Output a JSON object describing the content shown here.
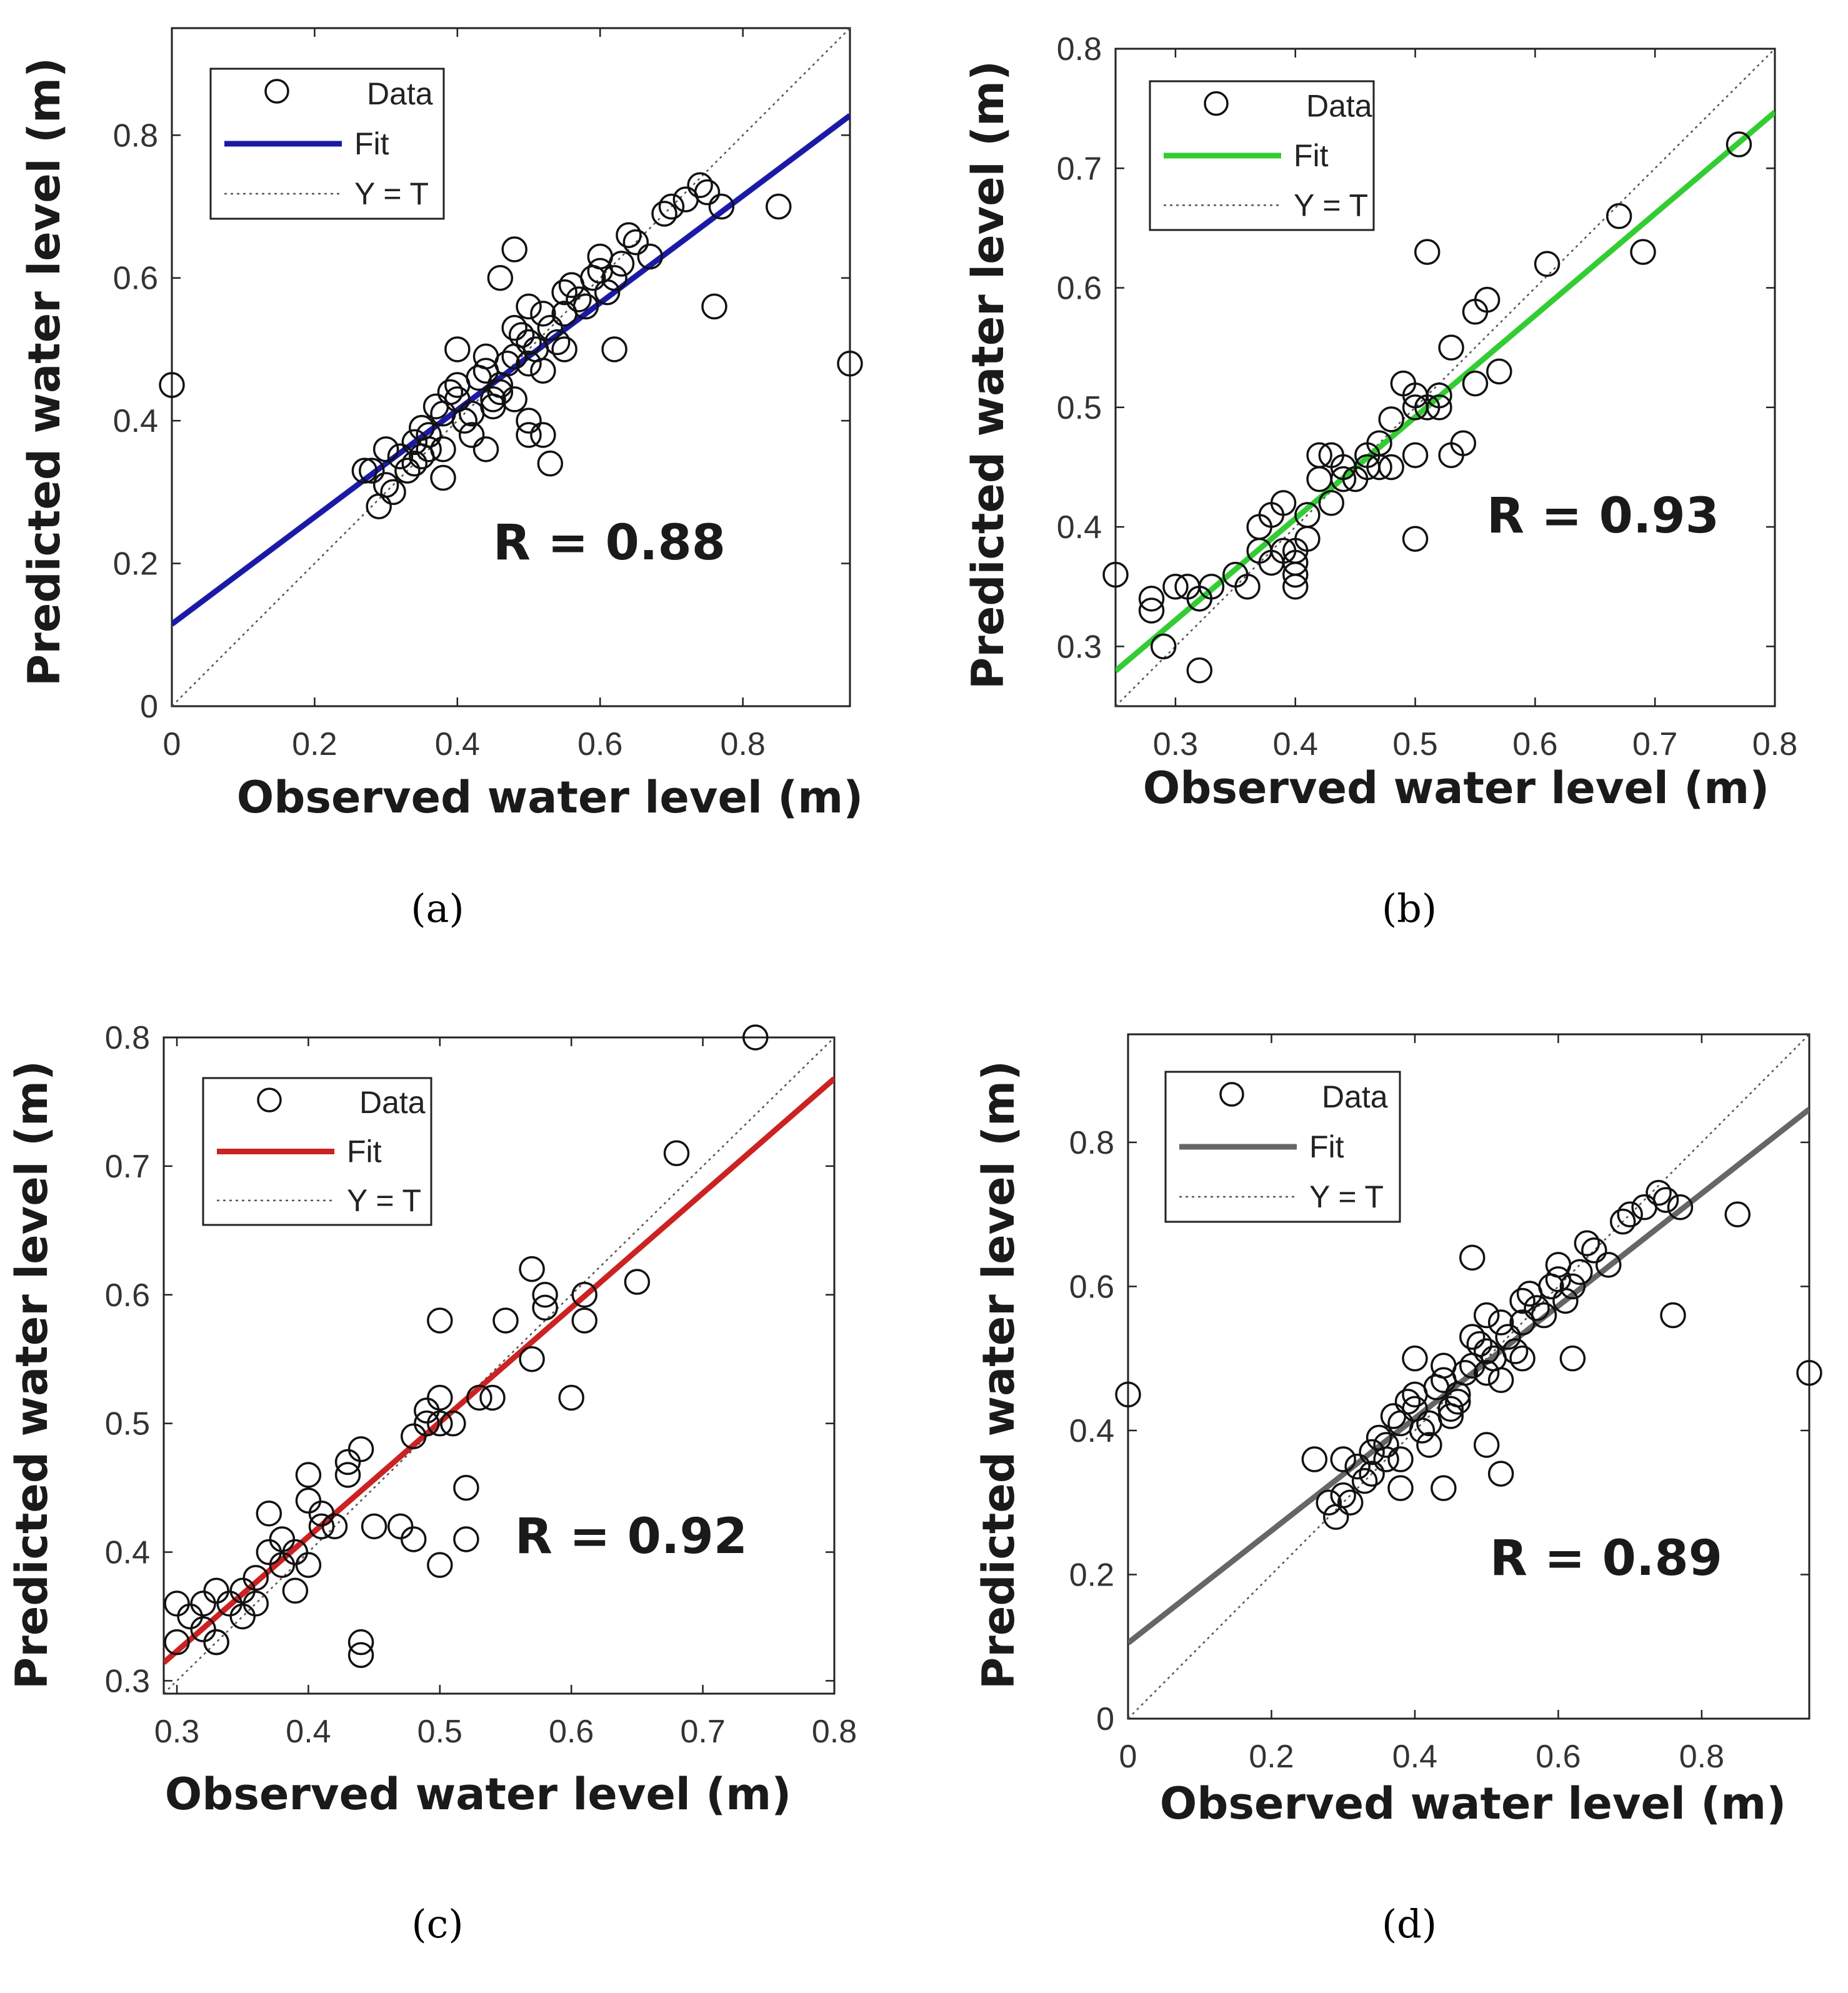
{
  "chart_data": [
    {
      "panel": "(a)",
      "type": "scatter",
      "xlabel": "Observed water level (m)",
      "ylabel": "Predicted water level (m)",
      "xlim": [
        0,
        0.95
      ],
      "ylim": [
        0,
        0.95
      ],
      "xticks": [
        "0",
        "0.2",
        "0.4",
        "0.6",
        "0.8"
      ],
      "xtick_values": [
        0,
        0.2,
        0.4,
        0.6,
        0.8
      ],
      "yticks": [
        "0",
        "0.2",
        "0.4",
        "0.6",
        "0.8"
      ],
      "ytick_values": [
        0,
        0.2,
        0.4,
        0.6,
        0.8
      ],
      "legend": [
        "Data",
        "Fit",
        "Y = T"
      ],
      "fit_color": "#1a1aa6",
      "fit": {
        "slope": 0.75,
        "intercept": 0.115
      },
      "r_label": "R = 0.88",
      "x": [
        0.0,
        0.28,
        0.3,
        0.32,
        0.34,
        0.36,
        0.38,
        0.4,
        0.42,
        0.44,
        0.46,
        0.48,
        0.5,
        0.52,
        0.3,
        0.33,
        0.35,
        0.37,
        0.39,
        0.41,
        0.43,
        0.45,
        0.47,
        0.49,
        0.51,
        0.53,
        0.55,
        0.57,
        0.59,
        0.61,
        0.63,
        0.65,
        0.67,
        0.31,
        0.34,
        0.36,
        0.38,
        0.4,
        0.42,
        0.44,
        0.46,
        0.48,
        0.5,
        0.52,
        0.54,
        0.56,
        0.58,
        0.6,
        0.62,
        0.64,
        0.27,
        0.29,
        0.35,
        0.4,
        0.45,
        0.5,
        0.55,
        0.6,
        0.7,
        0.72,
        0.74,
        0.75,
        0.77,
        0.85,
        0.76,
        0.95,
        0.53,
        0.52,
        0.5,
        0.48,
        0.46,
        0.62,
        0.69,
        0.55,
        0.48,
        0.5,
        0.44,
        0.38
      ],
      "y": [
        0.45,
        0.33,
        0.31,
        0.35,
        0.37,
        0.36,
        0.41,
        0.43,
        0.38,
        0.47,
        0.45,
        0.49,
        0.51,
        0.47,
        0.36,
        0.33,
        0.39,
        0.42,
        0.44,
        0.4,
        0.46,
        0.43,
        0.48,
        0.52,
        0.5,
        0.53,
        0.55,
        0.57,
        0.6,
        0.58,
        0.62,
        0.65,
        0.63,
        0.3,
        0.34,
        0.38,
        0.36,
        0.45,
        0.41,
        0.49,
        0.44,
        0.53,
        0.48,
        0.55,
        0.51,
        0.59,
        0.56,
        0.63,
        0.6,
        0.66,
        0.33,
        0.28,
        0.35,
        0.5,
        0.42,
        0.56,
        0.5,
        0.61,
        0.7,
        0.71,
        0.73,
        0.72,
        0.7,
        0.7,
        0.56,
        0.48,
        0.34,
        0.38,
        0.4,
        0.64,
        0.6,
        0.5,
        0.69,
        0.58,
        0.43,
        0.38,
        0.36,
        0.32
      ]
    },
    {
      "panel": "(b)",
      "type": "scatter",
      "xlabel": "Observed water level (m)",
      "ylabel": "Predicted water level (m)",
      "xlim": [
        0.25,
        0.8
      ],
      "ylim": [
        0.25,
        0.8
      ],
      "xticks": [
        "0.3",
        "0.4",
        "0.5",
        "0.6",
        "0.7",
        "0.8"
      ],
      "xtick_values": [
        0.3,
        0.4,
        0.5,
        0.6,
        0.7,
        0.8
      ],
      "yticks": [
        "0.3",
        "0.4",
        "0.5",
        "0.6",
        "0.7",
        "0.8"
      ],
      "ytick_values": [
        0.3,
        0.4,
        0.5,
        0.6,
        0.7,
        0.8
      ],
      "legend": [
        "Data",
        "Fit",
        "Y = T"
      ],
      "fit_color": "#33cc33",
      "fit": {
        "slope": 0.85,
        "intercept": 0.067
      },
      "r_label": "R = 0.93",
      "x": [
        0.25,
        0.28,
        0.28,
        0.29,
        0.3,
        0.31,
        0.32,
        0.32,
        0.33,
        0.35,
        0.36,
        0.37,
        0.37,
        0.38,
        0.38,
        0.39,
        0.39,
        0.4,
        0.4,
        0.4,
        0.41,
        0.41,
        0.42,
        0.42,
        0.43,
        0.43,
        0.44,
        0.44,
        0.45,
        0.46,
        0.46,
        0.47,
        0.47,
        0.48,
        0.48,
        0.49,
        0.5,
        0.5,
        0.5,
        0.51,
        0.52,
        0.52,
        0.53,
        0.53,
        0.54,
        0.55,
        0.55,
        0.56,
        0.57,
        0.61,
        0.67,
        0.69,
        0.77,
        0.51,
        0.5,
        0.32,
        0.4
      ],
      "y": [
        0.36,
        0.34,
        0.33,
        0.3,
        0.35,
        0.35,
        0.28,
        0.34,
        0.35,
        0.36,
        0.35,
        0.4,
        0.38,
        0.41,
        0.37,
        0.38,
        0.42,
        0.36,
        0.38,
        0.37,
        0.39,
        0.41,
        0.44,
        0.46,
        0.42,
        0.46,
        0.45,
        0.44,
        0.44,
        0.46,
        0.45,
        0.45,
        0.47,
        0.49,
        0.45,
        0.52,
        0.51,
        0.5,
        0.46,
        0.5,
        0.5,
        0.51,
        0.55,
        0.46,
        0.47,
        0.52,
        0.58,
        0.59,
        0.53,
        0.62,
        0.66,
        0.63,
        0.72,
        0.63,
        0.39,
        0.34,
        0.35
      ]
    },
    {
      "panel": "(c)",
      "type": "scatter",
      "xlabel": "Observed water level (m)",
      "ylabel": "Predicted water level (m)",
      "xlim": [
        0.29,
        0.8
      ],
      "ylim": [
        0.29,
        0.8
      ],
      "xticks": [
        "0.3",
        "0.4",
        "0.5",
        "0.6",
        "0.7",
        "0.8"
      ],
      "xtick_values": [
        0.3,
        0.4,
        0.5,
        0.6,
        0.7,
        0.8
      ],
      "yticks": [
        "0.3",
        "0.4",
        "0.5",
        "0.6",
        "0.7",
        "0.8"
      ],
      "ytick_values": [
        0.3,
        0.4,
        0.5,
        0.6,
        0.7,
        0.8
      ],
      "legend": [
        "Data",
        "Fit",
        "Y = T"
      ],
      "fit_color": "#cc2222",
      "fit": {
        "slope": 0.89,
        "intercept": 0.056
      },
      "r_label": "R = 0.92",
      "x": [
        0.3,
        0.3,
        0.31,
        0.32,
        0.32,
        0.33,
        0.33,
        0.34,
        0.35,
        0.35,
        0.36,
        0.36,
        0.37,
        0.37,
        0.38,
        0.38,
        0.39,
        0.39,
        0.4,
        0.4,
        0.4,
        0.41,
        0.41,
        0.42,
        0.43,
        0.43,
        0.44,
        0.44,
        0.45,
        0.47,
        0.48,
        0.48,
        0.49,
        0.49,
        0.5,
        0.5,
        0.5,
        0.51,
        0.52,
        0.52,
        0.53,
        0.54,
        0.55,
        0.57,
        0.57,
        0.58,
        0.58,
        0.6,
        0.61,
        0.61,
        0.65,
        0.68,
        0.74,
        0.5,
        0.44,
        0.33
      ],
      "y": [
        0.33,
        0.36,
        0.35,
        0.36,
        0.34,
        0.37,
        0.33,
        0.36,
        0.37,
        0.35,
        0.36,
        0.38,
        0.43,
        0.4,
        0.41,
        0.39,
        0.37,
        0.4,
        0.39,
        0.44,
        0.46,
        0.43,
        0.42,
        0.42,
        0.47,
        0.46,
        0.48,
        0.33,
        0.42,
        0.42,
        0.41,
        0.49,
        0.51,
        0.5,
        0.52,
        0.5,
        0.58,
        0.5,
        0.45,
        0.41,
        0.52,
        0.52,
        0.58,
        0.62,
        0.55,
        0.6,
        0.59,
        0.52,
        0.58,
        0.6,
        0.61,
        0.71,
        0.8,
        0.39,
        0.32,
        0.33
      ]
    },
    {
      "panel": "(d)",
      "type": "scatter",
      "xlabel": "Observed water level (m)",
      "ylabel": "Predicted water level (m)",
      "xlim": [
        0,
        0.95
      ],
      "ylim": [
        0,
        0.95
      ],
      "xticks": [
        "0",
        "0.2",
        "0.4",
        "0.6",
        "0.8"
      ],
      "xtick_values": [
        0,
        0.2,
        0.4,
        0.6,
        0.8
      ],
      "yticks": [
        "0",
        "0.2",
        "0.4",
        "0.6",
        "0.8"
      ],
      "ytick_values": [
        0,
        0.2,
        0.4,
        0.6,
        0.8
      ],
      "legend": [
        "Data",
        "Fit",
        "Y = T"
      ],
      "fit_color": "#666666",
      "fit": {
        "slope": 0.78,
        "intercept": 0.105
      },
      "r_label": "R = 0.89",
      "x": [
        0.0,
        0.26,
        0.28,
        0.3,
        0.32,
        0.34,
        0.36,
        0.38,
        0.4,
        0.42,
        0.44,
        0.46,
        0.48,
        0.5,
        0.52,
        0.3,
        0.33,
        0.35,
        0.37,
        0.39,
        0.41,
        0.43,
        0.45,
        0.47,
        0.49,
        0.51,
        0.53,
        0.55,
        0.57,
        0.59,
        0.61,
        0.63,
        0.65,
        0.67,
        0.31,
        0.34,
        0.36,
        0.38,
        0.4,
        0.42,
        0.44,
        0.46,
        0.48,
        0.5,
        0.52,
        0.54,
        0.56,
        0.58,
        0.6,
        0.62,
        0.64,
        0.29,
        0.4,
        0.45,
        0.5,
        0.55,
        0.6,
        0.7,
        0.72,
        0.74,
        0.75,
        0.77,
        0.85,
        0.76,
        0.95,
        0.52,
        0.5,
        0.48,
        0.44,
        0.62,
        0.69,
        0.55,
        0.38
      ],
      "y": [
        0.45,
        0.36,
        0.3,
        0.31,
        0.35,
        0.37,
        0.36,
        0.41,
        0.43,
        0.38,
        0.47,
        0.45,
        0.49,
        0.51,
        0.47,
        0.36,
        0.33,
        0.39,
        0.42,
        0.44,
        0.4,
        0.46,
        0.43,
        0.48,
        0.52,
        0.5,
        0.53,
        0.55,
        0.57,
        0.6,
        0.58,
        0.62,
        0.65,
        0.63,
        0.3,
        0.34,
        0.38,
        0.36,
        0.45,
        0.41,
        0.49,
        0.44,
        0.53,
        0.48,
        0.55,
        0.51,
        0.59,
        0.56,
        0.63,
        0.6,
        0.66,
        0.28,
        0.5,
        0.42,
        0.56,
        0.5,
        0.61,
        0.7,
        0.71,
        0.73,
        0.72,
        0.71,
        0.7,
        0.56,
        0.48,
        0.34,
        0.38,
        0.64,
        0.32,
        0.5,
        0.69,
        0.58,
        0.32
      ]
    }
  ]
}
